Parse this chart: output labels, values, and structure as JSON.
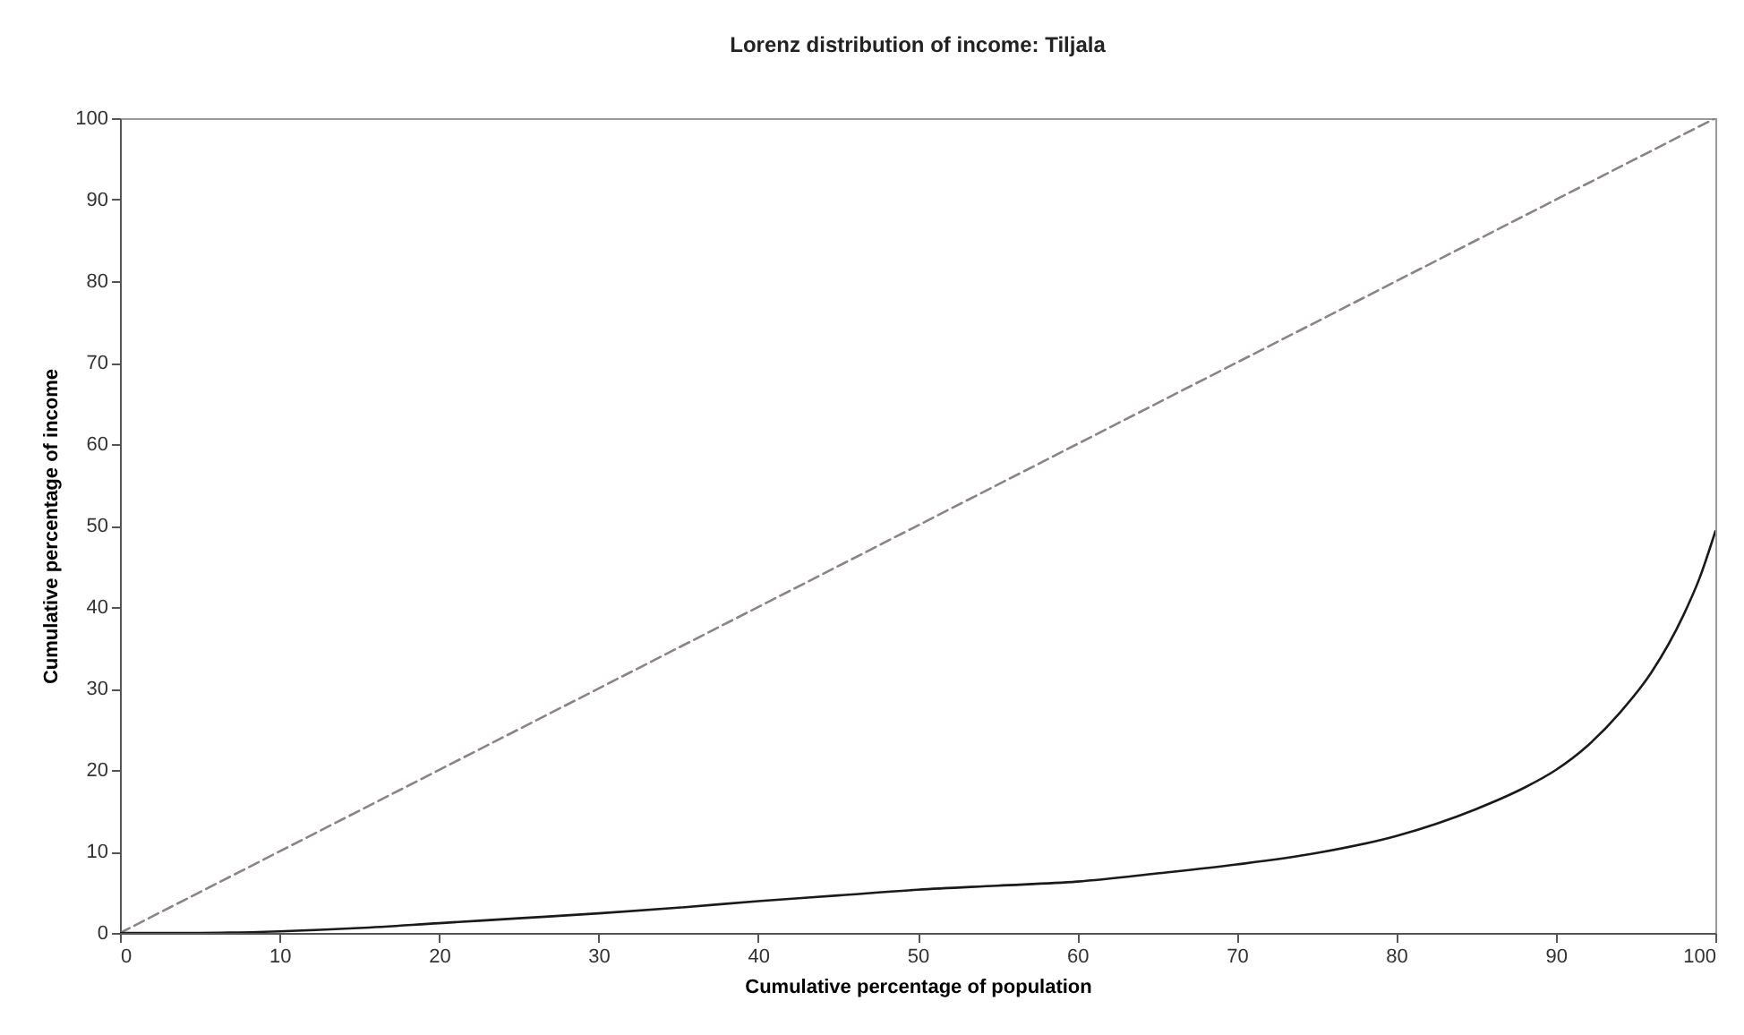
{
  "chart_data": {
    "type": "line",
    "title": "Lorenz distribution of income: Tiljala",
    "xlabel": "Cumulative percentage of population",
    "ylabel": "Cumulative percentage of income",
    "xlim": [
      0,
      100
    ],
    "xticks": [
      0,
      10,
      20,
      30,
      40,
      50,
      60,
      70,
      80,
      90,
      100
    ],
    "ylim": [
      0,
      100
    ],
    "yticks": [
      0,
      10,
      20,
      30,
      40,
      50,
      60,
      70,
      80,
      90,
      100
    ],
    "grid": false,
    "marker": "none",
    "series": [
      {
        "color": "#8c8484",
        "line_style": "dashed",
        "x": [
          0,
          100
        ],
        "values": [
          0,
          100
        ]
      },
      {
        "color": "#1a1a1a",
        "line_style": "solid",
        "x": [
          0,
          5,
          10,
          15,
          20,
          25,
          30,
          35,
          40,
          45,
          50,
          55,
          60,
          65,
          70,
          75,
          80,
          85,
          88,
          90,
          92,
          94,
          96,
          98,
          99,
          100
        ],
        "values": [
          0,
          0,
          0.2,
          0.6,
          1.2,
          1.8,
          2.4,
          3.1,
          3.9,
          4.6,
          5.3,
          5.8,
          6.3,
          7.3,
          8.4,
          9.8,
          11.9,
          15.2,
          17.8,
          20,
          23,
          27,
          32,
          39,
          43.5,
          49.3
        ]
      }
    ]
  }
}
